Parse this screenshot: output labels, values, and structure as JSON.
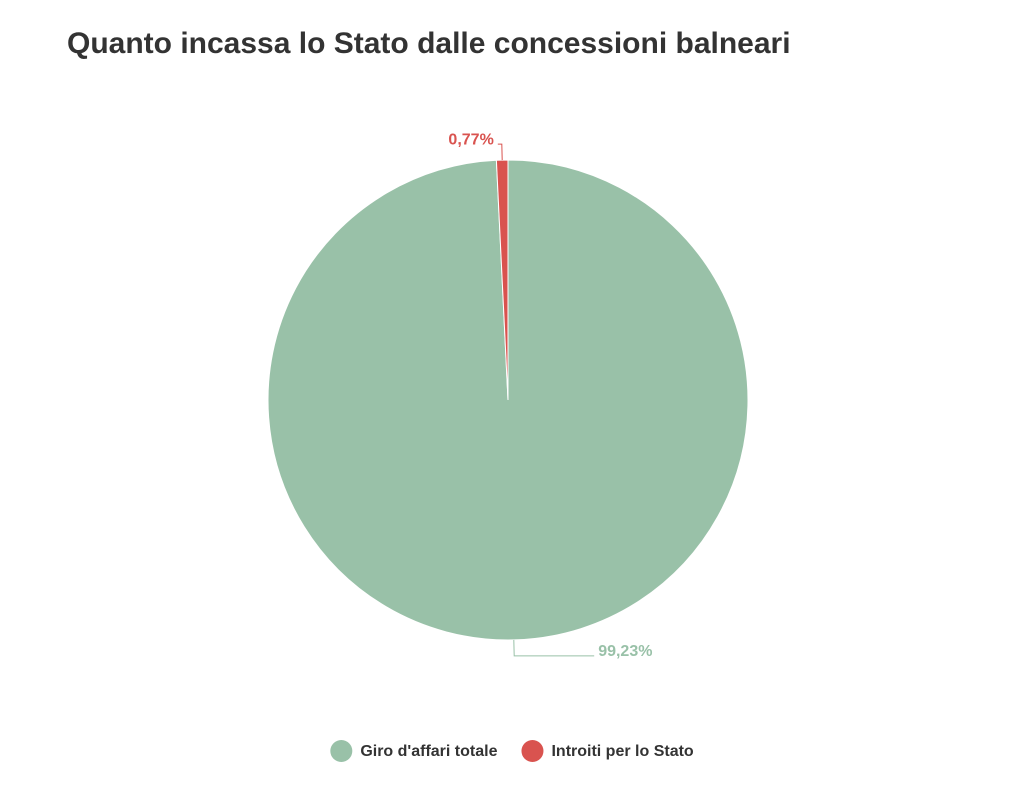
{
  "chart_data": {
    "type": "pie",
    "title": "Quanto incassa lo Stato dalle concessioni balneari",
    "categories": [
      "Giro d'affari totale",
      "Introiti per lo Stato"
    ],
    "values": [
      99.23,
      0.77
    ],
    "value_labels": [
      "99,23%",
      "0,77%"
    ],
    "colors": [
      "#99c1a8",
      "#d9534f"
    ]
  }
}
